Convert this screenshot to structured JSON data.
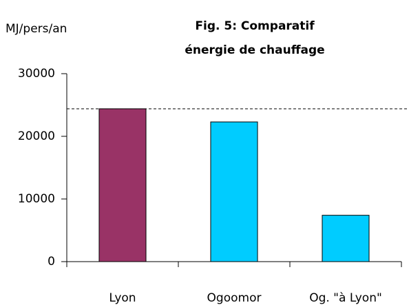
{
  "chart_data": {
    "type": "bar",
    "title": [
      "Fig. 5: Comparatif",
      "énergie de chauffage"
    ],
    "y_label": "MJ/pers/an",
    "categories": [
      "Lyon",
      "Ogoomor",
      "Og. \"à Lyon\""
    ],
    "values": [
      24400,
      22300,
      7400
    ],
    "colors": [
      "#993366",
      "#00ccff",
      "#00ccff"
    ],
    "reference_line": 24400,
    "ylim": [
      0,
      30000
    ],
    "yticks": [
      0,
      10000,
      20000,
      30000
    ],
    "grid": false
  }
}
